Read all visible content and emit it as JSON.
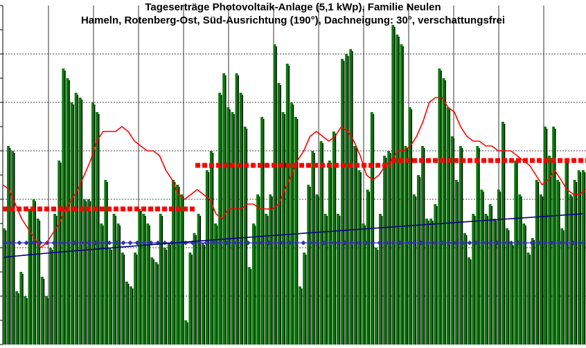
{
  "chart_data": {
    "type": "bar",
    "title": "Tageserträge Photovoltaik-Anlage (5,1 kWp),  Familie Neulen",
    "subtitle": "Hameln, Rotenberg-Ost, Süd-Ausrichtung (190°), Dachneigung: 30°, verschattungsfrei",
    "xlabel": "",
    "ylabel": "",
    "ylim": [
      0,
      7
    ],
    "grid": true,
    "legend": "none",
    "colors": {
      "bars": "#0a7a0a",
      "bar_shadow": "#000000",
      "moving_average": "#ff0000",
      "monthly_mean": "#ff0000",
      "cumulative_mean": "#00007f",
      "reference": "#3333aa",
      "grid": "#000000"
    },
    "daily_yield_kwh": [
      2.4,
      4.1,
      4.0,
      1.1,
      1.5,
      1.0,
      2.8,
      3.0,
      2.6,
      1.4,
      1.0,
      2.0,
      2.7,
      3.8,
      5.7,
      5.5,
      5.0,
      5.2,
      5.1,
      3.0,
      3.0,
      5.0,
      4.8,
      2.5,
      3.4,
      2.0,
      2.7,
      2.5,
      1.9,
      1.3,
      1.2,
      1.9,
      2.8,
      2.7,
      2.5,
      1.8,
      1.7,
      2.7,
      2.0,
      2.1,
      3.4,
      3.3,
      3.1,
      0.5,
      1.9,
      2.3,
      2.7,
      2.1,
      3.6,
      4.0,
      2.5,
      5.2,
      5.6,
      4.9,
      4.8,
      5.6,
      5.2,
      4.5,
      1.6,
      2.5,
      3.1,
      4.7,
      2.7,
      3.1,
      6.2,
      5.4,
      4.8,
      5.8,
      5.0,
      4.7,
      1.2,
      1.9,
      3.3,
      4.0,
      3.1,
      4.2,
      2.7,
      3.8,
      4.4,
      2.7,
      5.9,
      6.0,
      6.1,
      4.1,
      3.6,
      2.5,
      3.2,
      4.8,
      2.0,
      2.7,
      3.9,
      4.0,
      6.6,
      6.4,
      6.2,
      4.1,
      4.9,
      3.1,
      3.5,
      4.1,
      2.6,
      2.6,
      2.9,
      5.7,
      5.5,
      4.9,
      4.3,
      3.4,
      4.1,
      2.3,
      1.8,
      2.7,
      4.1,
      3.2,
      2.7,
      2.9,
      2.6,
      3.2,
      4.6,
      2.4,
      2.1,
      3.8,
      3.1,
      2.5,
      1.9,
      2.2,
      3.4,
      3.1,
      4.5,
      3.9,
      4.5,
      3.4,
      2.4,
      3.8,
      3.1,
      3.4,
      3.6,
      3.6
    ],
    "moving_average_kwh": [
      3.3,
      3.2,
      2.9,
      2.6,
      2.4,
      2.2,
      2.0,
      2.1,
      2.3,
      2.5,
      2.8,
      3.0,
      3.2,
      3.5,
      3.8,
      4.2,
      4.4,
      4.4,
      4.4,
      4.5,
      4.4,
      4.2,
      4.1,
      4.0,
      4.0,
      3.9,
      3.6,
      3.4,
      3.1,
      3.0,
      3.1,
      3.2,
      3.1,
      3.0,
      2.7,
      2.6,
      2.8,
      2.8,
      2.8,
      2.9,
      2.9,
      2.8,
      2.8,
      2.8,
      2.9,
      3.2,
      3.5,
      3.8,
      4.0,
      4.3,
      4.4,
      4.3,
      4.2,
      4.3,
      4.5,
      4.4,
      4.2,
      3.9,
      3.5,
      3.4,
      3.5,
      3.7,
      3.8,
      4.0,
      4.0,
      4.1,
      4.3,
      4.6,
      5.0,
      5.1,
      5.1,
      4.9,
      4.8,
      4.5,
      4.3,
      4.2,
      4.2,
      4.1,
      4.1,
      4.0,
      4.0,
      4.0,
      3.9,
      3.8,
      3.7,
      3.5,
      3.3,
      3.4,
      3.6,
      3.4,
      3.2,
      3.1,
      3.1,
      3.2
    ]
  }
}
